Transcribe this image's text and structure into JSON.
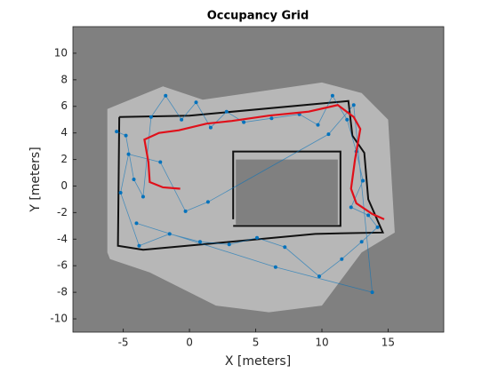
{
  "chart_data": {
    "type": "occupancy",
    "title": "Occupancy Grid",
    "x_label": "X [meters]",
    "y_label": "Y [meters]",
    "xlim": [
      -8.8,
      19.2
    ],
    "ylim": [
      -11,
      12
    ],
    "xticks": [
      -5,
      0,
      5,
      10,
      15
    ],
    "yticks": [
      -10,
      -8,
      -6,
      -4,
      -2,
      0,
      2,
      4,
      6,
      8,
      10
    ],
    "series": [
      {
        "name": "tree",
        "color": "#0072bd",
        "x": [
          -5.5,
          -4.8,
          -4.2,
          -3.5,
          -2.9,
          -1.8,
          -0.6,
          0.5,
          1.6,
          2.8,
          4.1,
          6.2,
          8.3,
          9.7,
          10.8,
          11.9,
          12.6,
          13.1,
          12.2,
          13.5,
          14.2,
          13.0,
          11.5,
          9.8,
          7.2,
          5.1,
          3.0,
          0.8,
          -1.5,
          -3.8,
          -5.2,
          -4.6,
          -2.2,
          -0.3,
          1.4,
          10.5,
          12.4,
          13.8,
          6.5,
          -4.0
        ],
        "y": [
          4.1,
          3.8,
          0.5,
          -0.8,
          5.2,
          6.8,
          5.0,
          6.3,
          4.4,
          5.6,
          4.8,
          5.1,
          5.4,
          4.6,
          6.8,
          5.0,
          2.6,
          0.4,
          -1.6,
          -2.2,
          -3.1,
          -4.2,
          -5.5,
          -6.8,
          -4.6,
          -3.9,
          -4.4,
          -4.2,
          -3.6,
          -4.5,
          -0.5,
          2.4,
          1.8,
          -1.9,
          -1.2,
          3.9,
          6.1,
          -8.0,
          -6.1,
          -2.8
        ]
      },
      {
        "name": "path",
        "color": "#e0101a",
        "x": [
          14.7,
          13.8,
          12.6,
          12.2,
          12.5,
          12.9,
          12.4,
          11.2,
          9.0,
          6.0,
          3.2,
          1.3,
          -0.8,
          -2.3,
          -3.4,
          -3.1,
          -3.0,
          -2.0,
          -0.7
        ],
        "y": [
          -2.5,
          -2.1,
          -1.3,
          -0.2,
          2.0,
          4.3,
          5.2,
          6.1,
          5.6,
          5.3,
          4.9,
          4.7,
          4.2,
          4.0,
          3.5,
          1.8,
          0.3,
          -0.1,
          -0.2
        ]
      }
    ]
  }
}
